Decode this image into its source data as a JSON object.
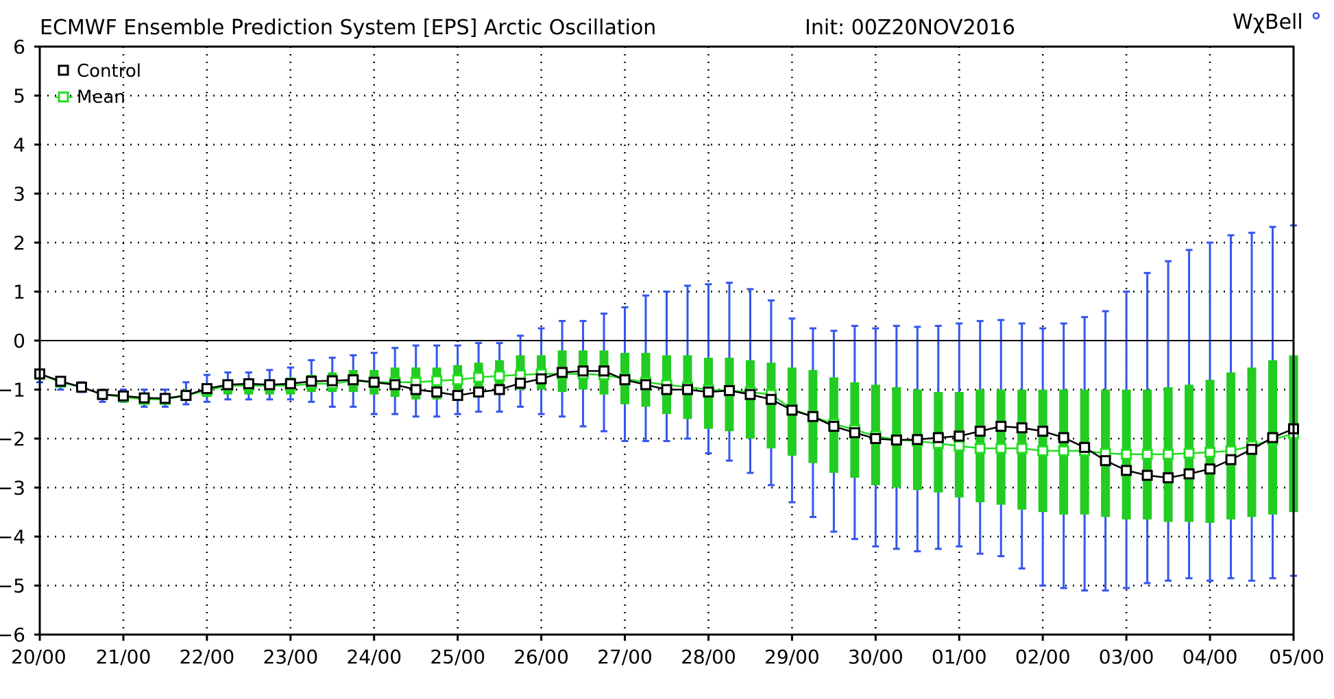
{
  "chart_data": {
    "type": "line",
    "title": "ECMWF Ensemble Prediction System [EPS] Arctic Oscillation",
    "init_label": "Init: 00Z20NOV2016",
    "brand": "WχBell",
    "xlabel": "",
    "ylabel": "",
    "ylim": [
      -6,
      6
    ],
    "yticks": [
      "-6",
      "-5",
      "-4",
      "-3",
      "-2",
      "-1",
      "0",
      "1",
      "2",
      "3",
      "4",
      "5",
      "6"
    ],
    "xlim": [
      0,
      15
    ],
    "xticks": [
      "20/00",
      "21/00",
      "22/00",
      "23/00",
      "24/00",
      "25/00",
      "26/00",
      "27/00",
      "28/00",
      "29/00",
      "30/00",
      "01/00",
      "02/00",
      "03/00",
      "04/00",
      "05/00"
    ],
    "grid": true,
    "legend": [
      {
        "name": "Control",
        "color": "#000000"
      },
      {
        "name": "Mean",
        "color": "#22dd22"
      }
    ],
    "colors": {
      "control": "#000000",
      "mean": "#22dd22",
      "box": "#22cc22",
      "whisker": "#3355ee",
      "grid": "#000000"
    },
    "x_days": [
      0,
      0.25,
      0.5,
      0.75,
      1,
      1.25,
      1.5,
      1.75,
      2,
      2.25,
      2.5,
      2.75,
      3,
      3.25,
      3.5,
      3.75,
      4,
      4.25,
      4.5,
      4.75,
      5,
      5.25,
      5.5,
      5.75,
      6,
      6.25,
      6.5,
      6.75,
      7,
      7.25,
      7.5,
      7.75,
      8,
      8.25,
      8.5,
      8.75,
      9,
      9.25,
      9.5,
      9.75,
      10,
      10.25,
      10.5,
      10.75,
      11,
      11.25,
      11.5,
      11.75,
      12,
      12.25,
      12.5,
      12.75,
      13,
      13.25,
      13.5,
      13.75,
      14,
      14.25,
      14.5,
      14.75,
      15
    ],
    "series": [
      {
        "name": "Control",
        "values": [
          -0.68,
          -0.83,
          -0.95,
          -1.1,
          -1.13,
          -1.17,
          -1.18,
          -1.12,
          -0.98,
          -0.9,
          -0.88,
          -0.9,
          -0.88,
          -0.83,
          -0.82,
          -0.8,
          -0.85,
          -0.9,
          -1.0,
          -1.05,
          -1.12,
          -1.05,
          -1.0,
          -0.87,
          -0.78,
          -0.65,
          -0.62,
          -0.62,
          -0.8,
          -0.9,
          -1.0,
          -1.0,
          -1.05,
          -1.02,
          -1.1,
          -1.2,
          -1.42,
          -1.55,
          -1.75,
          -1.88,
          -2.0,
          -2.03,
          -2.02,
          -1.98,
          -1.95,
          -1.85,
          -1.75,
          -1.78,
          -1.85,
          -1.98,
          -2.18,
          -2.45,
          -2.65,
          -2.75,
          -2.8,
          -2.72,
          -2.62,
          -2.43,
          -2.22,
          -1.98,
          -1.8
        ]
      },
      {
        "name": "Mean",
        "values": [
          -0.68,
          -0.85,
          -0.95,
          -1.1,
          -1.15,
          -1.2,
          -1.2,
          -1.12,
          -1.02,
          -0.92,
          -0.92,
          -0.92,
          -0.92,
          -0.88,
          -0.88,
          -0.82,
          -0.85,
          -0.85,
          -0.85,
          -0.82,
          -0.8,
          -0.75,
          -0.72,
          -0.7,
          -0.68,
          -0.68,
          -0.68,
          -0.7,
          -0.78,
          -0.85,
          -0.9,
          -0.95,
          -1.0,
          -1.02,
          -1.05,
          -1.1,
          -1.4,
          -1.55,
          -1.7,
          -1.82,
          -1.95,
          -2.02,
          -2.05,
          -2.1,
          -2.15,
          -2.2,
          -2.2,
          -2.2,
          -2.25,
          -2.25,
          -2.25,
          -2.3,
          -2.32,
          -2.32,
          -2.32,
          -2.3,
          -2.28,
          -2.25,
          -2.15,
          -2.02,
          -1.9
        ]
      }
    ],
    "box_q1": [
      -0.8,
      -0.95,
      -1.0,
      -1.2,
      -1.2,
      -1.25,
      -1.25,
      -1.2,
      -1.15,
      -1.1,
      -1.1,
      -1.1,
      -1.1,
      -1.05,
      -1.05,
      -1.05,
      -1.1,
      -1.15,
      -1.2,
      -1.2,
      -1.15,
      -1.1,
      -1.1,
      -1.0,
      -1.0,
      -1.05,
      -1.0,
      -1.1,
      -1.3,
      -1.35,
      -1.5,
      -1.6,
      -1.8,
      -1.85,
      -2.0,
      -2.2,
      -2.35,
      -2.5,
      -2.7,
      -2.8,
      -2.95,
      -3.0,
      -3.05,
      -3.1,
      -3.2,
      -3.3,
      -3.35,
      -3.45,
      -3.5,
      -3.55,
      -3.55,
      -3.6,
      -3.65,
      -3.65,
      -3.7,
      -3.7,
      -3.72,
      -3.65,
      -3.6,
      -3.55,
      -3.5
    ],
    "box_q3": [
      -0.65,
      -0.8,
      -0.92,
      -1.05,
      -1.05,
      -1.1,
      -1.1,
      -1.0,
      -0.95,
      -0.85,
      -0.85,
      -0.8,
      -0.75,
      -0.7,
      -0.65,
      -0.6,
      -0.6,
      -0.55,
      -0.55,
      -0.55,
      -0.5,
      -0.45,
      -0.4,
      -0.3,
      -0.3,
      -0.2,
      -0.2,
      -0.2,
      -0.25,
      -0.25,
      -0.3,
      -0.3,
      -0.35,
      -0.35,
      -0.4,
      -0.45,
      -0.55,
      -0.6,
      -0.75,
      -0.85,
      -0.9,
      -0.95,
      -1.0,
      -1.05,
      -1.05,
      -1.0,
      -1.0,
      -1.0,
      -1.0,
      -1.0,
      -1.0,
      -1.0,
      -1.0,
      -1.0,
      -0.95,
      -0.9,
      -0.8,
      -0.65,
      -0.55,
      -0.4,
      -0.3
    ],
    "whisker_lo": [
      -0.85,
      -1.0,
      -1.05,
      -1.25,
      -1.25,
      -1.35,
      -1.35,
      -1.3,
      -1.25,
      -1.2,
      -1.2,
      -1.2,
      -1.2,
      -1.25,
      -1.35,
      -1.35,
      -1.5,
      -1.5,
      -1.55,
      -1.55,
      -1.5,
      -1.45,
      -1.45,
      -1.35,
      -1.5,
      -1.55,
      -1.75,
      -1.85,
      -2.05,
      -2.05,
      -2.05,
      -2.0,
      -2.3,
      -2.45,
      -2.7,
      -2.95,
      -3.3,
      -3.6,
      -3.9,
      -4.05,
      -4.2,
      -4.25,
      -4.3,
      -4.25,
      -4.2,
      -4.35,
      -4.4,
      -4.65,
      -5.0,
      -5.05,
      -5.1,
      -5.1,
      -5.05,
      -4.95,
      -4.9,
      -4.85,
      -4.9,
      -4.85,
      -4.9,
      -4.85,
      -4.8
    ],
    "whisker_hi": [
      -0.6,
      -0.75,
      -0.85,
      -1.0,
      -1.0,
      -1.0,
      -1.0,
      -0.85,
      -0.7,
      -0.65,
      -0.65,
      -0.6,
      -0.55,
      -0.4,
      -0.35,
      -0.3,
      -0.25,
      -0.15,
      -0.1,
      -0.1,
      -0.1,
      -0.05,
      -0.05,
      0.1,
      0.25,
      0.4,
      0.4,
      0.55,
      0.68,
      0.92,
      1.0,
      1.12,
      1.15,
      1.18,
      1.05,
      0.82,
      0.45,
      0.25,
      0.2,
      0.3,
      0.25,
      0.3,
      0.28,
      0.3,
      0.35,
      0.4,
      0.42,
      0.35,
      0.25,
      0.35,
      0.48,
      0.6,
      1.0,
      1.38,
      1.62,
      1.85,
      2.0,
      2.15,
      2.2,
      2.32,
      2.35
    ]
  }
}
